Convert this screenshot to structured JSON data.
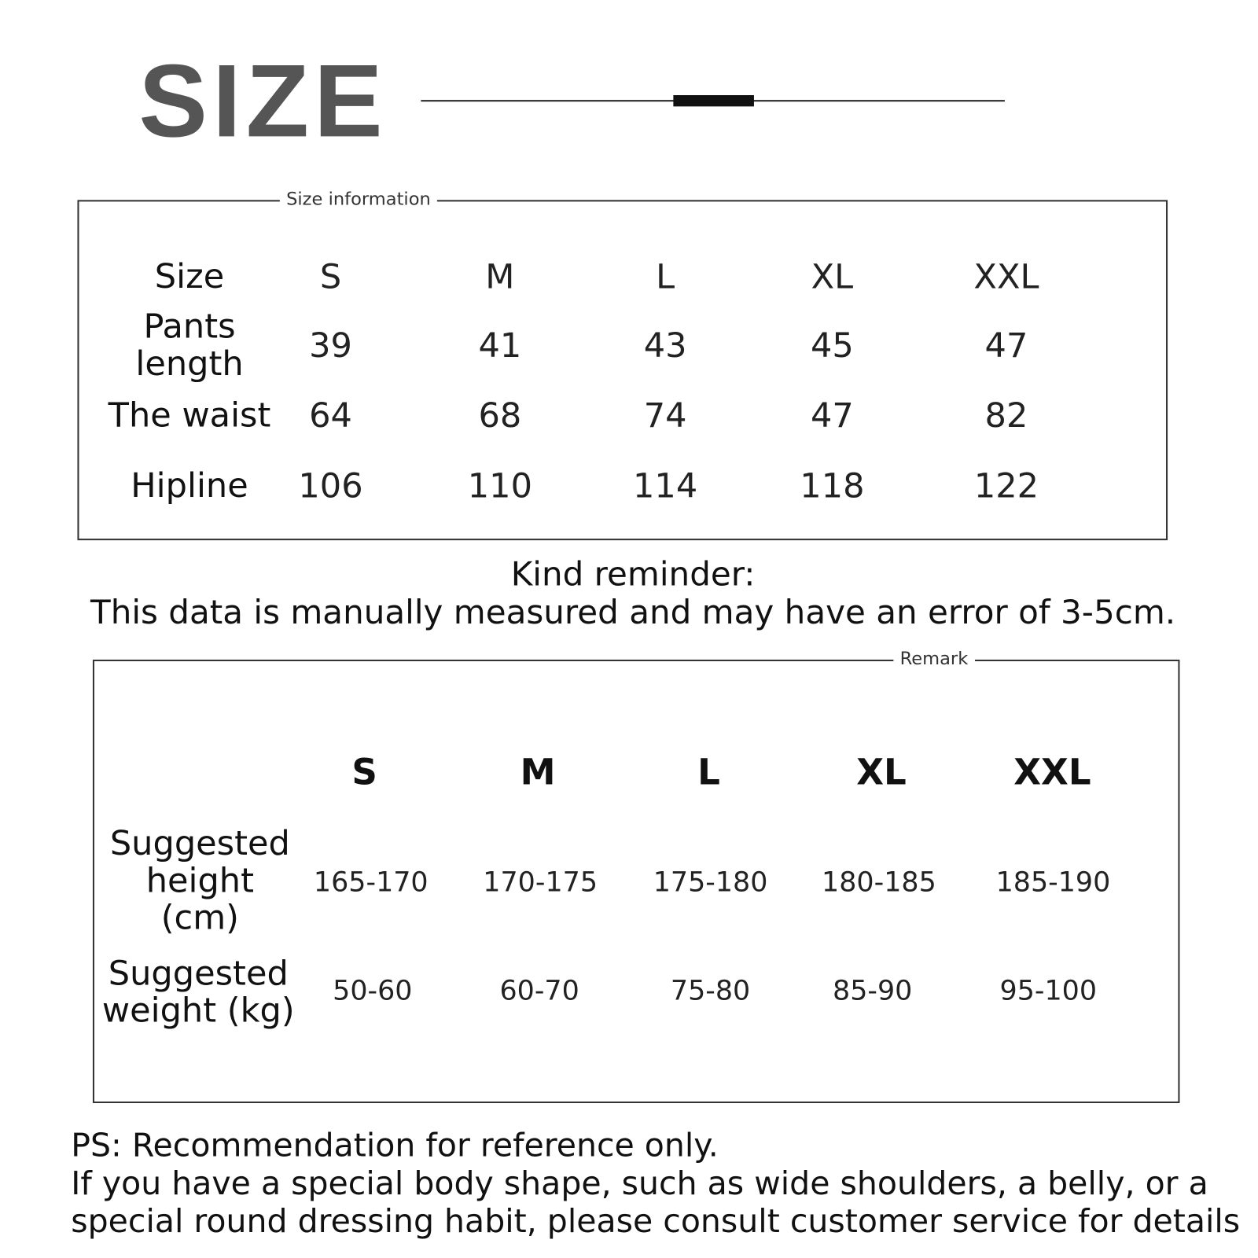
{
  "header": {
    "title": "SIZE"
  },
  "size_info": {
    "label": "Size information",
    "row_labels": [
      "Size",
      "Pants length",
      "The waist",
      "Hipline"
    ],
    "sizes": [
      "S",
      "M",
      "L",
      "XL",
      "XXL"
    ],
    "pants_length": [
      "39",
      "41",
      "43",
      "45",
      "47"
    ],
    "waist": [
      "64",
      "68",
      "74",
      "47",
      "82"
    ],
    "hipline": [
      "106",
      "110",
      "114",
      "118",
      "122"
    ]
  },
  "reminder": {
    "line1": "Kind reminder:",
    "line2": "This data is manually measured and may have an error of 3-5cm."
  },
  "remark": {
    "label": "Remark",
    "sizes": [
      "S",
      "M",
      "L",
      "XL",
      "XXL"
    ],
    "height_label": "Suggested height (cm)",
    "height": [
      "165-170",
      "170-175",
      "175-180",
      "180-185",
      "185-190"
    ],
    "weight_label": "Suggested weight (kg)",
    "weight": [
      "50-60",
      "60-70",
      "75-80",
      "85-90",
      "95-100"
    ]
  },
  "ps": {
    "line1": "PS: Recommendation for reference only.",
    "line2": "If you have a special body shape, such as wide shoulders, a belly, or a",
    "line3": "special round dressing habit, please consult customer service for details"
  }
}
